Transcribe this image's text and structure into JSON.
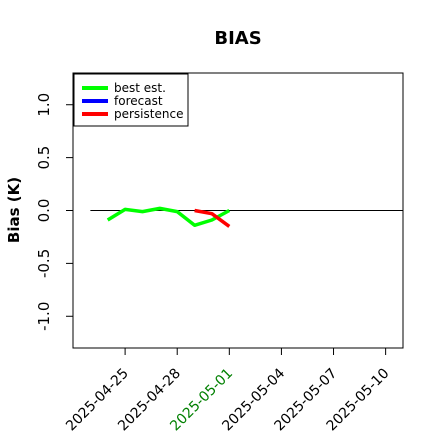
{
  "chart_data": {
    "type": "line",
    "title": "BIAS",
    "xlabel": "",
    "ylabel": "Bias (K)",
    "ylim": [
      -1.3,
      1.3
    ],
    "yticks": [
      -1.0,
      -0.5,
      0.0,
      0.5,
      1.0
    ],
    "ytick_labels": [
      "-1.0",
      "-0.5",
      "0.0",
      "0.5",
      "1.0"
    ],
    "xlim": [
      "2025-04-22",
      "2025-05-11"
    ],
    "xtick_labels": [
      "2025-04-25",
      "2025-04-28",
      "2025-05-01",
      "2025-05-04",
      "2025-05-07",
      "2025-05-10"
    ],
    "xtick_colors": [
      "#000000",
      "#000000",
      "#008000",
      "#000000",
      "#000000",
      "#000000"
    ],
    "reference_line": {
      "y": 0.0,
      "x_start": "2025-04-23",
      "x_end": "2025-05-11",
      "color": "#000000"
    },
    "legend": {
      "placement": "top-left",
      "entries": [
        "best est.",
        "forecast",
        "persistence"
      ]
    },
    "grid": false,
    "series": [
      {
        "name": "best est.",
        "color": "#00ff00",
        "x": [
          "2025-04-24",
          "2025-04-25",
          "2025-04-26",
          "2025-04-27",
          "2025-04-28",
          "2025-04-29",
          "2025-04-30",
          "2025-05-01"
        ],
        "y": [
          -0.09,
          0.01,
          -0.01,
          0.02,
          -0.01,
          -0.14,
          -0.09,
          0.0
        ]
      },
      {
        "name": "forecast",
        "color": "#0000ff",
        "x": [],
        "y": []
      },
      {
        "name": "persistence",
        "color": "#ff0000",
        "x": [
          "2025-04-29",
          "2025-04-30",
          "2025-05-01"
        ],
        "y": [
          0.0,
          -0.03,
          -0.15
        ]
      }
    ]
  }
}
